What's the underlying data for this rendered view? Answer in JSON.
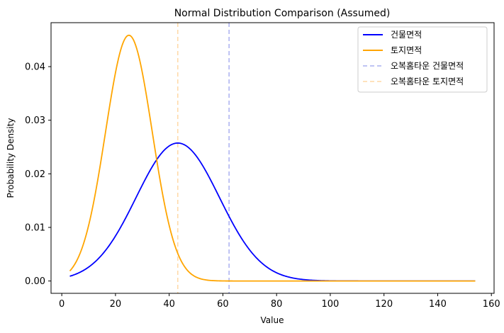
{
  "chart_data": {
    "type": "line",
    "title": "Normal Distribution Comparison (Assumed)",
    "xlabel": "Value",
    "ylabel": "Probability Density",
    "xlim": [
      -4,
      161
    ],
    "ylim": [
      -0.0023,
      0.0482
    ],
    "xticks": [
      0,
      20,
      40,
      60,
      80,
      100,
      120,
      140,
      160
    ],
    "xtick_labels": [
      "0",
      "20",
      "40",
      "60",
      "80",
      "100",
      "120",
      "140",
      "160"
    ],
    "yticks": [
      0.0,
      0.01,
      0.02,
      0.03,
      0.04
    ],
    "ytick_labels": [
      "0.00",
      "0.01",
      "0.02",
      "0.03",
      "0.04"
    ],
    "grid": false,
    "legend_position": "top-right",
    "x_range": [
      3,
      154
    ],
    "series": [
      {
        "name": "건물면적",
        "kind": "normal_pdf",
        "mean": 43.2,
        "std": 15.5,
        "color": "#0000ff",
        "style": "solid"
      },
      {
        "name": "토지면적",
        "kind": "normal_pdf",
        "mean": 25.0,
        "std": 8.7,
        "color": "#ffa500",
        "style": "solid"
      }
    ],
    "vlines": [
      {
        "name": "오복홈타운 건물면적",
        "x": 62.3,
        "color": "#aab0f0",
        "style": "dashed"
      },
      {
        "name": "오복홈타운 토지면적",
        "x": 43.2,
        "color": "#ffd9a6",
        "style": "dashed"
      }
    ]
  }
}
